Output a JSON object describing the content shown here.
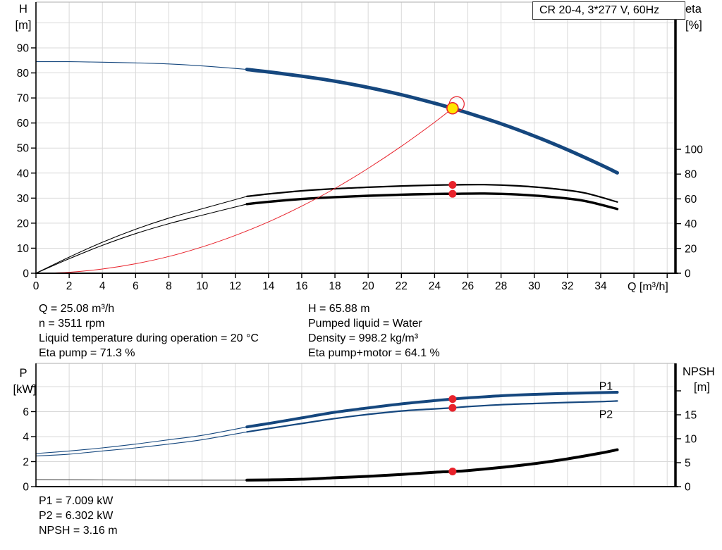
{
  "title_box": "CR 20-4, 3*277 V, 60Hz",
  "colors": {
    "blue": "#15477e",
    "black": "#000000",
    "red": "#e8222b",
    "gray": "#4a4a4a",
    "yellow": "#ffe600",
    "grid": "#d9d9d9",
    "frame": "#bdbdbd"
  },
  "annotations": {
    "col1": [
      "Q = 25.08 m³/h",
      "n = 3511 rpm",
      "Liquid temperature during operation = 20 °C",
      "Eta pump = 71.3 %"
    ],
    "col2": [
      "H = 65.88 m",
      "Pumped liquid = Water",
      "Density = 998.2 kg/m³",
      "Eta pump+motor = 64.1 %"
    ],
    "bottom": [
      "P1 = 7.009 kW",
      "P2 = 6.302 kW",
      "NPSH = 3.16 m"
    ]
  },
  "chart_data": [
    {
      "id": "qh",
      "type": "line",
      "x_axis": {
        "label": "Q [m³/h]",
        "range": [
          0,
          38.5
        ],
        "labeled_ticks": [
          0,
          2,
          4,
          6,
          8,
          10,
          12,
          14,
          16,
          18,
          20,
          22,
          24,
          26,
          28,
          30,
          32,
          34
        ],
        "unlabeled_ticks": [
          36,
          38
        ]
      },
      "left_axis": {
        "name": "H",
        "unit": "[m]",
        "range": [
          0,
          108
        ],
        "labeled_ticks": [
          0,
          10,
          20,
          30,
          40,
          50,
          60,
          70,
          80,
          90
        ],
        "unlabeled_ticks": [],
        "grid_ticks": [
          10,
          20,
          30,
          40,
          50,
          60,
          70,
          80,
          90,
          100
        ]
      },
      "right_axis": {
        "name": "eta",
        "unit": "[%]",
        "range": [
          0,
          219
        ],
        "labeled_ticks": [
          0,
          20,
          40,
          60,
          80,
          100
        ],
        "unlabeled_ticks": []
      },
      "series": [
        {
          "name": "pump-curve",
          "axis": "left",
          "color_key": "blue",
          "width": 5,
          "thin_until": 12.7,
          "points": [
            [
              0,
              84.5
            ],
            [
              2,
              84.5
            ],
            [
              4,
              84.3
            ],
            [
              6,
              84.0
            ],
            [
              8,
              83.6
            ],
            [
              10,
              82.8
            ],
            [
              12,
              81.8
            ],
            [
              12.7,
              81.4
            ],
            [
              14,
              80.4
            ],
            [
              16,
              78.7
            ],
            [
              18,
              76.7
            ],
            [
              20,
              74.2
            ],
            [
              22,
              71.3
            ],
            [
              24,
              67.9
            ],
            [
              25.08,
              65.88
            ],
            [
              26,
              64.0
            ],
            [
              28,
              59.7
            ],
            [
              30,
              54.8
            ],
            [
              32,
              49.3
            ],
            [
              34,
              43.3
            ],
            [
              35,
              40.1
            ]
          ]
        },
        {
          "name": "eta-pump-curve",
          "axis": "right",
          "color_key": "black",
          "width": 2.2,
          "thin_until": 12.7,
          "points": [
            [
              0,
              0
            ],
            [
              2,
              13
            ],
            [
              4,
              25
            ],
            [
              6,
              35.5
            ],
            [
              8,
              44.5
            ],
            [
              10,
              52
            ],
            [
              12.7,
              62
            ],
            [
              14,
              64
            ],
            [
              16,
              66.5
            ],
            [
              18,
              68.2
            ],
            [
              20,
              69.4
            ],
            [
              22,
              70.4
            ],
            [
              24,
              71.1
            ],
            [
              25.08,
              71.3
            ],
            [
              27,
              71.5
            ],
            [
              29,
              70.5
            ],
            [
              31,
              68.4
            ],
            [
              33,
              64.9
            ],
            [
              35,
              57.5
            ]
          ]
        },
        {
          "name": "eta-pump-motor-curve",
          "axis": "right",
          "color_key": "black",
          "width": 3.4,
          "thin_until": 12.7,
          "points": [
            [
              0,
              0
            ],
            [
              2,
              11.7
            ],
            [
              4,
              22.5
            ],
            [
              6,
              32
            ],
            [
              8,
              40
            ],
            [
              10,
              46.8
            ],
            [
              12.7,
              55.8
            ],
            [
              14,
              57.6
            ],
            [
              16,
              59.9
            ],
            [
              18,
              61.4
            ],
            [
              20,
              62.5
            ],
            [
              22,
              63.4
            ],
            [
              24,
              64.0
            ],
            [
              25.08,
              64.1
            ],
            [
              27,
              64.3
            ],
            [
              29,
              63.5
            ],
            [
              31,
              61.6
            ],
            [
              33,
              58.4
            ],
            [
              35,
              51.8
            ]
          ]
        },
        {
          "name": "system-curve",
          "axis": "left",
          "color_key": "red",
          "width": 1,
          "points": [
            [
              0,
              0
            ],
            [
              2,
              0.4
            ],
            [
              4,
              1.7
            ],
            [
              6,
              3.8
            ],
            [
              8,
              6.7
            ],
            [
              10,
              10.5
            ],
            [
              12,
              15.1
            ],
            [
              14,
              20.5
            ],
            [
              16,
              26.8
            ],
            [
              18,
              33.9
            ],
            [
              20,
              41.9
            ],
            [
              22,
              50.7
            ],
            [
              24,
              60.3
            ],
            [
              25.08,
              65.88
            ]
          ]
        }
      ],
      "markers": [
        {
          "style": "duty",
          "q": 25.08,
          "value": 65.88,
          "axis": "left"
        },
        {
          "style": "dot",
          "q": 25.08,
          "value": 71.3,
          "axis": "right"
        },
        {
          "style": "dot",
          "q": 25.08,
          "value": 64.1,
          "axis": "right"
        }
      ]
    },
    {
      "id": "pw",
      "type": "line",
      "x_axis": {
        "label": "",
        "range": [
          0,
          38.5
        ],
        "labeled_ticks": [],
        "unlabeled_ticks": []
      },
      "left_axis": {
        "name": "P",
        "unit": "[kW]",
        "range": [
          0,
          9.85
        ],
        "labeled_ticks": [
          0,
          2,
          4,
          6
        ],
        "unlabeled_ticks": [
          8
        ],
        "grid_ticks": [
          2,
          4,
          6,
          8
        ]
      },
      "right_axis": {
        "name": "NPSH",
        "unit": "[m]",
        "range": [
          0,
          25.7
        ],
        "labeled_ticks": [
          0,
          5,
          10,
          15
        ],
        "unlabeled_ticks": [
          20
        ]
      },
      "series": [
        {
          "name": "p1-curve",
          "axis": "left",
          "color_key": "blue",
          "width": 4,
          "thin_until": 12.7,
          "label": {
            "text": "P1",
            "q": 33.9,
            "value": 7.75
          },
          "points": [
            [
              0,
              2.65
            ],
            [
              2,
              2.85
            ],
            [
              4,
              3.1
            ],
            [
              6,
              3.4
            ],
            [
              8,
              3.75
            ],
            [
              10,
              4.1
            ],
            [
              12.7,
              4.78
            ],
            [
              14,
              5.05
            ],
            [
              16,
              5.5
            ],
            [
              18,
              5.95
            ],
            [
              20,
              6.3
            ],
            [
              22,
              6.62
            ],
            [
              24,
              6.88
            ],
            [
              25.08,
              7.009
            ],
            [
              26,
              7.1
            ],
            [
              28,
              7.27
            ],
            [
              30,
              7.38
            ],
            [
              32,
              7.46
            ],
            [
              34,
              7.52
            ],
            [
              35,
              7.55
            ]
          ]
        },
        {
          "name": "p2-curve",
          "axis": "left",
          "color_key": "blue",
          "width": 2.2,
          "thin_until": 12.7,
          "label": {
            "text": "P2",
            "q": 33.9,
            "value": 5.5
          },
          "points": [
            [
              0,
              2.45
            ],
            [
              2,
              2.6
            ],
            [
              4,
              2.85
            ],
            [
              6,
              3.1
            ],
            [
              8,
              3.4
            ],
            [
              10,
              3.75
            ],
            [
              12.7,
              4.38
            ],
            [
              14,
              4.65
            ],
            [
              16,
              5.05
            ],
            [
              18,
              5.45
            ],
            [
              20,
              5.78
            ],
            [
              22,
              6.05
            ],
            [
              24,
              6.22
            ],
            [
              25.08,
              6.302
            ],
            [
              26,
              6.4
            ],
            [
              28,
              6.55
            ],
            [
              30,
              6.65
            ],
            [
              32,
              6.73
            ],
            [
              34,
              6.8
            ],
            [
              35,
              6.85
            ]
          ]
        },
        {
          "name": "npsh-curve",
          "axis": "right",
          "color_key": "black",
          "thin_color_key": "gray",
          "width": 4,
          "thin_until": 12.7,
          "points": [
            [
              0,
              1.45
            ],
            [
              4,
              1.4
            ],
            [
              8,
              1.35
            ],
            [
              12.7,
              1.35
            ],
            [
              14,
              1.4
            ],
            [
              16,
              1.55
            ],
            [
              18,
              1.85
            ],
            [
              20,
              2.15
            ],
            [
              22,
              2.55
            ],
            [
              24,
              3.0
            ],
            [
              25.08,
              3.16
            ],
            [
              26,
              3.35
            ],
            [
              28,
              4.0
            ],
            [
              30,
              4.8
            ],
            [
              32,
              5.8
            ],
            [
              34,
              7.0
            ],
            [
              35,
              7.7
            ]
          ]
        }
      ],
      "markers": [
        {
          "style": "dot",
          "q": 25.08,
          "value": 7.009,
          "axis": "left"
        },
        {
          "style": "dot",
          "q": 25.08,
          "value": 6.302,
          "axis": "left"
        },
        {
          "style": "dot",
          "q": 25.08,
          "value": 3.16,
          "axis": "right"
        }
      ]
    }
  ]
}
